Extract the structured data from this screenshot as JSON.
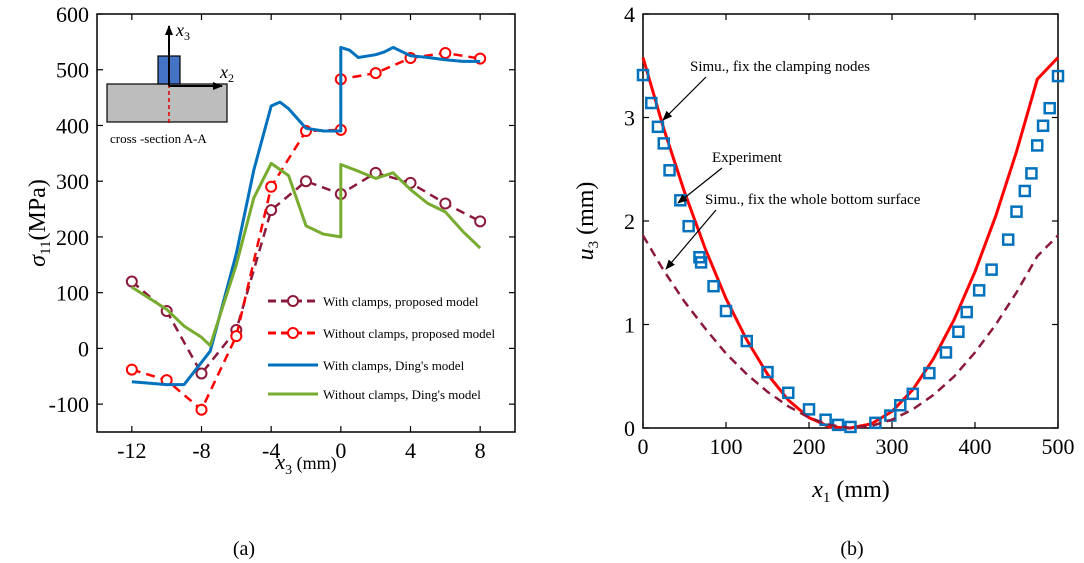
{
  "chart_data": [
    {
      "type": "line",
      "caption": "(a)",
      "xlabel_var": "x",
      "xlabel_sub": "3",
      "xlabel_unit": " (mm)",
      "ylabel_var": "σ",
      "ylabel_sub": "11",
      "ylabel_unit": "(MPa)",
      "xlim": [
        -14,
        10
      ],
      "ylim": [
        -150,
        600
      ],
      "xticks": [
        -12,
        -8,
        -4,
        0,
        4,
        8
      ],
      "yticks": [
        -100,
        0,
        100,
        200,
        300,
        400,
        500,
        600
      ],
      "inset": {
        "label": "cross -section A-A",
        "axis_up_var": "x",
        "axis_up_sub": "3",
        "axis_right_var": "x",
        "axis_right_sub": "2"
      },
      "series": [
        {
          "name": "With clamps, proposed model",
          "color": "#8b1a3a",
          "style": "dashed-circle",
          "x": [
            -12,
            -10,
            -8,
            -6,
            -4,
            -2,
            0,
            2,
            4,
            6,
            8
          ],
          "y": [
            120,
            67,
            -45,
            33,
            248,
            300,
            277,
            315,
            297,
            260,
            228
          ]
        },
        {
          "name": "Without clamps, proposed model",
          "color": "#ff0000",
          "style": "dashed-circle",
          "x": [
            -12,
            -10,
            -8,
            -6,
            -4,
            -2,
            0,
            0,
            2,
            4,
            6,
            8
          ],
          "y": [
            -38,
            -57,
            -110,
            22,
            290,
            390,
            392,
            483,
            494,
            521,
            530,
            520
          ]
        },
        {
          "name": "With clamps, Ding's model",
          "color": "#0072bd",
          "style": "solid",
          "x": [
            -12,
            -10,
            -9,
            -7.5,
            -6,
            -5,
            -4,
            -3.5,
            -3,
            -2,
            -1,
            0,
            0,
            0.5,
            1,
            2,
            2.5,
            3,
            4,
            5,
            6,
            7,
            8
          ],
          "y": [
            -60,
            -65,
            -65,
            -5,
            170,
            320,
            435,
            442,
            430,
            395,
            390,
            390,
            540,
            535,
            522,
            527,
            532,
            540,
            525,
            522,
            518,
            515,
            515
          ]
        },
        {
          "name": "Without clamps, Ding's model",
          "color": "#77ac30",
          "style": "solid",
          "x": [
            -12,
            -10,
            -9,
            -8,
            -7.5,
            -6,
            -5,
            -4,
            -3,
            -2,
            -1,
            0,
            0,
            1,
            2,
            3,
            4,
            5,
            6,
            7,
            8
          ],
          "y": [
            110,
            70,
            40,
            20,
            5,
            150,
            270,
            332,
            310,
            220,
            205,
            200,
            330,
            318,
            305,
            315,
            285,
            260,
            245,
            210,
            180
          ]
        }
      ]
    },
    {
      "type": "line",
      "caption": "(b)",
      "xlabel_var": "x",
      "xlabel_sub": "1",
      "xlabel_unit": " (mm)",
      "ylabel_var": "u",
      "ylabel_sub": "3",
      "ylabel_unit": " (mm)",
      "xlim": [
        0,
        500
      ],
      "ylim": [
        0,
        4
      ],
      "xticks": [
        0,
        100,
        200,
        300,
        400,
        500
      ],
      "yticks": [
        0,
        1,
        2,
        3,
        4
      ],
      "series": [
        {
          "name": "Simu., fix the clamping nodes",
          "color": "#ff0000",
          "style": "solid",
          "x": [
            0,
            25,
            50,
            75,
            100,
            125,
            150,
            175,
            200,
            225,
            250,
            275,
            300,
            325,
            350,
            375,
            400,
            425,
            450,
            475,
            500
          ],
          "y": [
            3.58,
            2.89,
            2.28,
            1.73,
            1.25,
            0.85,
            0.52,
            0.27,
            0.1,
            0.01,
            0.0,
            0.04,
            0.16,
            0.37,
            0.67,
            1.05,
            1.51,
            2.05,
            2.67,
            3.37,
            3.58
          ]
        },
        {
          "name": "Experiment",
          "color": "#0072bd",
          "style": "square-markers",
          "x": [
            0,
            10,
            18,
            25,
            32,
            45,
            55,
            68,
            70,
            85,
            100,
            125,
            150,
            175,
            200,
            220,
            235,
            250,
            280,
            298,
            310,
            325,
            345,
            365,
            380,
            390,
            405,
            420,
            440,
            450,
            460,
            468,
            475,
            482,
            490,
            500
          ],
          "y": [
            3.41,
            3.14,
            2.91,
            2.75,
            2.49,
            2.2,
            1.95,
            1.65,
            1.6,
            1.37,
            1.13,
            0.84,
            0.54,
            0.34,
            0.18,
            0.08,
            0.03,
            0.01,
            0.05,
            0.12,
            0.22,
            0.33,
            0.53,
            0.73,
            0.93,
            1.12,
            1.33,
            1.53,
            1.82,
            2.09,
            2.29,
            2.46,
            2.73,
            2.92,
            3.09,
            3.4
          ]
        },
        {
          "name": "Simu., fix the whole bottom surface",
          "color": "#8b1a3a",
          "style": "dashed",
          "x": [
            0,
            25,
            50,
            75,
            100,
            125,
            150,
            175,
            200,
            225,
            250,
            275,
            300,
            325,
            350,
            375,
            400,
            425,
            450,
            475,
            500
          ],
          "y": [
            1.86,
            1.52,
            1.22,
            0.96,
            0.72,
            0.52,
            0.35,
            0.21,
            0.1,
            0.03,
            0.0,
            0.02,
            0.08,
            0.18,
            0.32,
            0.5,
            0.73,
            1.0,
            1.31,
            1.66,
            1.86
          ]
        }
      ],
      "annotations": [
        "Simu., fix the clamping nodes",
        "Experiment",
        "Simu., fix the whole bottom surface"
      ]
    }
  ]
}
